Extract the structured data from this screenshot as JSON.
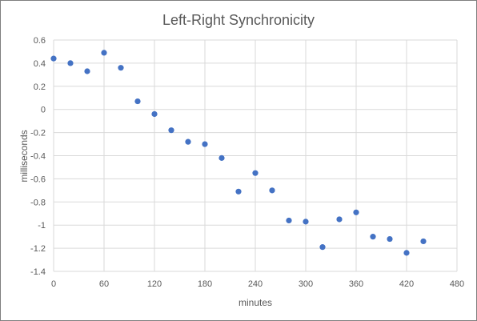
{
  "chart_data": {
    "type": "scatter",
    "title": "Left-Right Synchronicity",
    "xlabel": "minutes",
    "ylabel": "milliseconds",
    "xlim": [
      0,
      480
    ],
    "ylim": [
      -1.4,
      0.6
    ],
    "xticks": [
      0,
      60,
      120,
      180,
      240,
      300,
      360,
      420,
      480
    ],
    "yticks": [
      0.6,
      0.4,
      0.2,
      0,
      -0.2,
      -0.4,
      -0.6,
      -0.8,
      -1,
      -1.2,
      -1.4
    ],
    "grid": true,
    "marker_color": "#4472c4",
    "series": [
      {
        "x": [
          0,
          20,
          40,
          60,
          80,
          100,
          120,
          140,
          160,
          180,
          200,
          220,
          240,
          260,
          280,
          300,
          320,
          340,
          360,
          380,
          400,
          420,
          440
        ],
        "y": [
          0.44,
          0.4,
          0.33,
          0.49,
          0.36,
          0.07,
          -0.04,
          -0.18,
          -0.28,
          -0.3,
          -0.42,
          -0.71,
          -0.55,
          -0.7,
          -0.96,
          -0.97,
          -1.19,
          -0.95,
          -0.89,
          -1.1,
          -1.12,
          -1.24,
          -1.14
        ]
      }
    ]
  }
}
